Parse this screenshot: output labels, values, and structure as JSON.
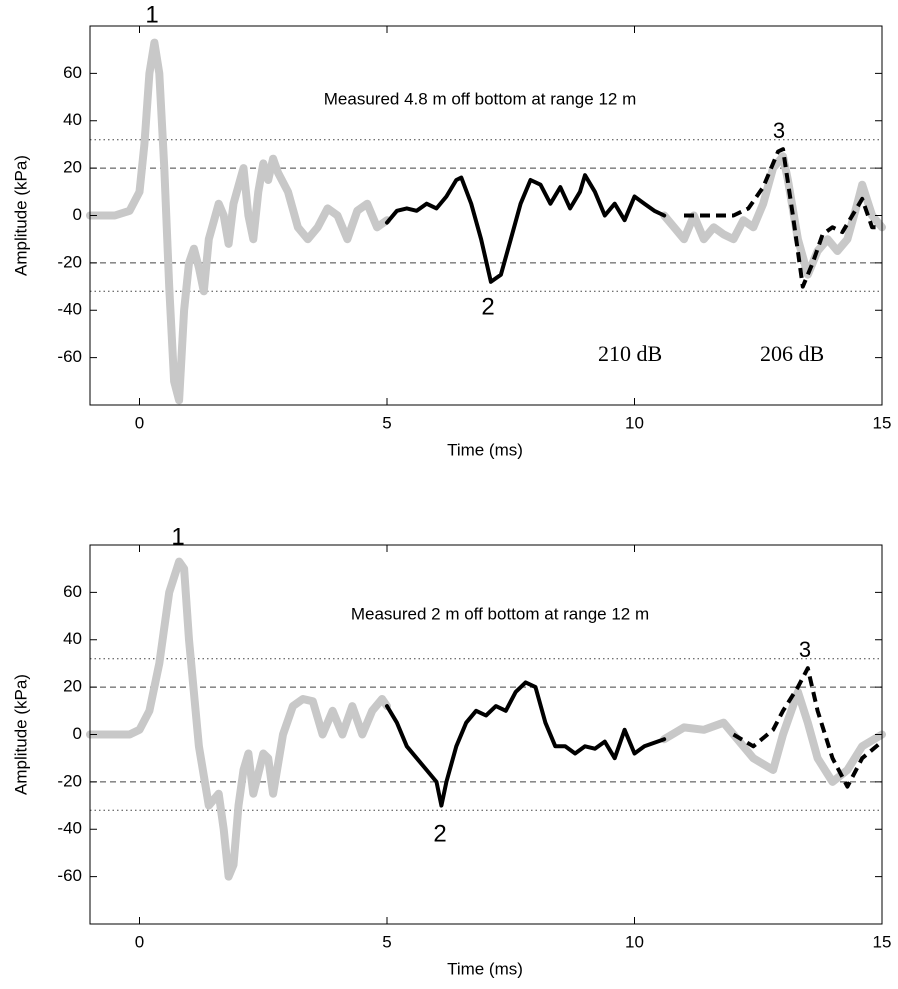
{
  "chart_data": [
    {
      "type": "line",
      "xlabel": "Time (ms)",
      "ylabel": "Amplitude (kPa)",
      "xlim": [
        -1,
        15
      ],
      "xticks": [
        0,
        5,
        10,
        15
      ],
      "ylim": [
        -80,
        80
      ],
      "yticks": [
        -60,
        -40,
        -20,
        0,
        20,
        40,
        60
      ],
      "hlines": [
        {
          "value": 32,
          "linestyle": "dotted"
        },
        {
          "value": 20,
          "linestyle": "dashed"
        },
        {
          "value": -20,
          "linestyle": "dashed"
        },
        {
          "value": -32,
          "linestyle": "dotted"
        }
      ],
      "annotations": [
        "1",
        "Measured 4.8 m off bottom at range 12 m",
        "3",
        "2",
        "210 dB",
        "206 dB"
      ],
      "series": [
        {
          "color": "#c8c8c8",
          "linestyle": "solid",
          "x": [
            -1,
            -0.5,
            -0.2,
            0,
            0.1,
            0.2,
            0.3,
            0.4,
            0.5,
            0.6,
            0.7,
            0.8,
            0.9,
            1.0,
            1.1,
            1.2,
            1.3,
            1.4,
            1.6,
            1.7,
            1.8,
            1.9,
            2.1,
            2.2,
            2.3,
            2.4,
            2.5,
            2.6,
            2.7,
            2.8,
            3.0,
            3.2,
            3.4,
            3.6,
            3.8,
            4.0,
            4.2,
            4.4,
            4.6,
            4.8,
            5.0,
            7,
            10.6,
            10.8,
            11.0,
            11.2,
            11.4,
            11.6,
            11.8,
            12.0,
            12.2,
            12.4,
            12.6,
            12.8,
            13.0,
            13.1,
            13.3,
            13.5,
            13.7,
            13.9,
            14.1,
            14.3,
            14.5,
            14.6,
            14.8,
            15.0
          ],
          "values": [
            0,
            0,
            2,
            10,
            30,
            60,
            73,
            60,
            20,
            -30,
            -70,
            -78,
            -40,
            -20,
            -14,
            -22,
            -32,
            -10,
            5,
            0,
            -12,
            5,
            20,
            0,
            -10,
            10,
            22,
            15,
            24,
            18,
            10,
            -5,
            -10,
            -5,
            3,
            0,
            -10,
            2,
            5,
            -5,
            -2,
            null,
            0,
            -5,
            -10,
            0,
            -10,
            -5,
            -8,
            -10,
            -2,
            -5,
            5,
            20,
            25,
            15,
            -10,
            -25,
            -15,
            -10,
            -15,
            -10,
            5,
            13,
            0,
            -5
          ]
        },
        {
          "color": "#000000",
          "linestyle": "solid",
          "x": [
            5.0,
            5.2,
            5.4,
            5.6,
            5.8,
            6.0,
            6.2,
            6.4,
            6.5,
            6.7,
            6.9,
            7.1,
            7.3,
            7.5,
            7.7,
            7.9,
            8.1,
            8.3,
            8.5,
            8.7,
            8.9,
            9.0,
            9.2,
            9.4,
            9.6,
            9.8,
            10.0,
            10.2,
            10.4,
            10.6
          ],
          "values": [
            -3,
            2,
            3,
            2,
            5,
            3,
            8,
            15,
            16,
            5,
            -10,
            -28,
            -25,
            -10,
            5,
            15,
            13,
            5,
            12,
            3,
            10,
            17,
            10,
            0,
            5,
            -2,
            8,
            5,
            2,
            0
          ]
        },
        {
          "color": "#000000",
          "linestyle": "dashed",
          "x": [
            11,
            12,
            12.3,
            12.6,
            12.9,
            13.0,
            13.2,
            13.4,
            13.6,
            13.8,
            14.0,
            14.2,
            14.4,
            14.6,
            14.8,
            15
          ],
          "values": [
            0,
            0,
            3,
            12,
            27,
            28,
            0,
            -30,
            -20,
            -8,
            -5,
            -7,
            0,
            7,
            -5,
            -5
          ]
        }
      ]
    },
    {
      "type": "line",
      "xlabel": "Time (ms)",
      "ylabel": "Amplitude (kPa)",
      "xlim": [
        -1,
        15
      ],
      "xticks": [
        0,
        5,
        10,
        15
      ],
      "ylim": [
        -80,
        80
      ],
      "yticks": [
        -60,
        -40,
        -20,
        0,
        20,
        40,
        60
      ],
      "hlines": [
        {
          "value": 32,
          "linestyle": "dotted"
        },
        {
          "value": 20,
          "linestyle": "dashed"
        },
        {
          "value": -20,
          "linestyle": "dashed"
        },
        {
          "value": -32,
          "linestyle": "dotted"
        }
      ],
      "annotations": [
        "1",
        "Measured 2 m off bottom at range 12 m",
        "3",
        "2"
      ],
      "series": [
        {
          "color": "#c8c8c8",
          "linestyle": "solid",
          "x": [
            -1,
            -0.2,
            0,
            0.2,
            0.4,
            0.6,
            0.8,
            0.9,
            1.0,
            1.2,
            1.4,
            1.6,
            1.7,
            1.8,
            1.9,
            2.0,
            2.1,
            2.2,
            2.3,
            2.5,
            2.6,
            2.7,
            2.9,
            3.1,
            3.3,
            3.5,
            3.7,
            3.9,
            4.1,
            4.3,
            4.5,
            4.7,
            4.9,
            5.0,
            7,
            10.6,
            11.0,
            11.4,
            11.8,
            12.0,
            12.4,
            12.8,
            13.0,
            13.3,
            13.5,
            13.7,
            14.0,
            14.3,
            14.6,
            15
          ],
          "values": [
            0,
            0,
            2,
            10,
            30,
            60,
            73,
            70,
            40,
            -5,
            -30,
            -25,
            -40,
            -60,
            -55,
            -30,
            -15,
            -8,
            -25,
            -8,
            -10,
            -25,
            0,
            12,
            15,
            14,
            0,
            10,
            0,
            12,
            0,
            10,
            15,
            12,
            null,
            -2,
            3,
            2,
            5,
            0,
            -10,
            -15,
            0,
            18,
            5,
            -10,
            -20,
            -15,
            -5,
            0
          ]
        },
        {
          "color": "#000000",
          "linestyle": "solid",
          "x": [
            5.0,
            5.2,
            5.4,
            5.6,
            5.8,
            6.0,
            6.1,
            6.2,
            6.4,
            6.6,
            6.8,
            7.0,
            7.2,
            7.4,
            7.6,
            7.8,
            8.0,
            8.2,
            8.4,
            8.6,
            8.8,
            9.0,
            9.2,
            9.4,
            9.6,
            9.8,
            10.0,
            10.2,
            10.6
          ],
          "values": [
            12,
            5,
            -5,
            -10,
            -15,
            -20,
            -30,
            -20,
            -5,
            5,
            10,
            8,
            12,
            10,
            18,
            22,
            20,
            5,
            -5,
            -5,
            -8,
            -5,
            -6,
            -3,
            -10,
            2,
            -8,
            -5,
            -2
          ]
        },
        {
          "color": "#000000",
          "linestyle": "dashed",
          "x": [
            12,
            12.4,
            12.8,
            13.0,
            13.3,
            13.5,
            13.7,
            14.0,
            14.3,
            14.6,
            15
          ],
          "values": [
            0,
            -5,
            2,
            10,
            20,
            28,
            10,
            -10,
            -22,
            -10,
            -3
          ]
        }
      ]
    }
  ]
}
